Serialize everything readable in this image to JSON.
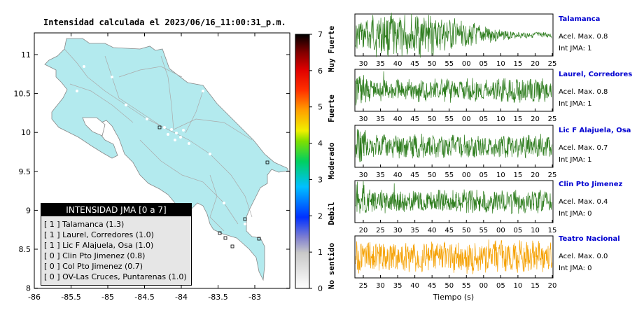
{
  "title": "Intensidad calculada el 2023/06/16_11:00:31_p.m.",
  "map": {
    "x_ticks": [
      "-86",
      "-85.5",
      "-85",
      "-84.5",
      "-84",
      "-83.5",
      "-83"
    ],
    "y_ticks": [
      "11",
      "10.5",
      "10",
      "9.5",
      "9",
      "8.5",
      "8"
    ],
    "land_color": "#b3eaee"
  },
  "colorbar": {
    "ticks": [
      "0",
      "1",
      "2",
      "3",
      "4",
      "5",
      "6",
      "7"
    ],
    "labels": [
      "No sentido",
      "Debil",
      "Moderado",
      "Fuerte",
      "Muy Fuerte"
    ]
  },
  "legend": {
    "header": "INTENSIDAD JMA [0 a 7]",
    "rows": [
      "[ 1 ]  Talamanca (1.3)",
      "[ 1 ]  Laurel, Corredores (1.0)",
      "[ 1 ]  Lic F Alajuela, Osa (1.0)",
      "[ 0 ]  Clin Pto Jimenez (0.8)",
      "[ 0 ]  Col Pto Jimenez (0.7)",
      "[ 0 ]  OV-Las Cruces, Puntarenas (1.0)"
    ]
  },
  "xlabel": "Tiempo (s)",
  "chart_data": [
    {
      "type": "line",
      "station": "Talamanca",
      "x_ticks": [
        "30",
        "35",
        "40",
        "45",
        "50",
        "55",
        "00",
        "05",
        "10",
        "15",
        "20",
        "25"
      ],
      "color": "#2e7d1e",
      "accel_label": "Acel. Max. 0.8",
      "int_label": "Int JMA: 1"
    },
    {
      "type": "line",
      "station": "Laurel, Corredores",
      "x_ticks": [
        "30",
        "35",
        "40",
        "45",
        "50",
        "55",
        "00",
        "05",
        "10",
        "15",
        "20",
        "25"
      ],
      "color": "#2e7d1e",
      "accel_label": "Acel. Max. 0.8",
      "int_label": "Int JMA: 1"
    },
    {
      "type": "line",
      "station": "Lic F Alajuela, Osa",
      "x_ticks": [
        "30",
        "35",
        "40",
        "45",
        "50",
        "55",
        "00",
        "05",
        "10",
        "15",
        "20",
        "25"
      ],
      "color": "#2e7d1e",
      "accel_label": "Acel. Max. 0.7",
      "int_label": "Int JMA: 1"
    },
    {
      "type": "line",
      "station": "Clin Pto Jimenez",
      "x_ticks": [
        "20",
        "25",
        "30",
        "35",
        "40",
        "45",
        "50",
        "55",
        "00",
        "05",
        "10",
        "15"
      ],
      "color": "#2e7d1e",
      "accel_label": "Acel. Max. 0.4",
      "int_label": "Int JMA: 0"
    },
    {
      "type": "line",
      "station": "Teatro Nacional",
      "x_ticks": [
        "25",
        "30",
        "35",
        "40",
        "45",
        "50",
        "55",
        "00",
        "05",
        "10",
        "15",
        "20"
      ],
      "color": "#f5a000",
      "accel_label": "Acel. Max. 0.0",
      "int_label": "Int JMA: 0"
    }
  ]
}
